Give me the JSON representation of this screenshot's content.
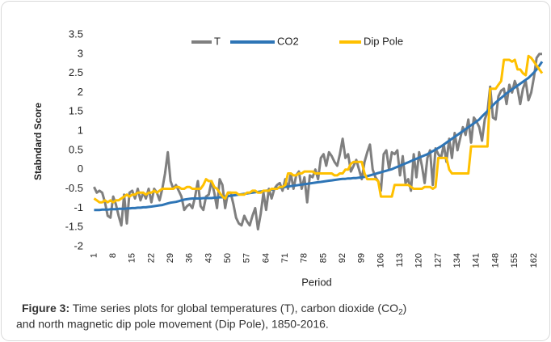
{
  "chart_data": {
    "type": "line",
    "y_label": "Stabndard Score",
    "x_label": "Period",
    "x": [
      1,
      2,
      3,
      4,
      5,
      6,
      7,
      8,
      9,
      10,
      11,
      12,
      13,
      14,
      15,
      16,
      17,
      18,
      19,
      20,
      21,
      22,
      23,
      24,
      25,
      26,
      27,
      28,
      29,
      30,
      31,
      32,
      33,
      34,
      35,
      36,
      37,
      38,
      39,
      40,
      41,
      42,
      43,
      44,
      45,
      46,
      47,
      48,
      49,
      50,
      51,
      52,
      53,
      54,
      55,
      56,
      57,
      58,
      59,
      60,
      61,
      62,
      63,
      64,
      65,
      66,
      67,
      68,
      69,
      70,
      71,
      72,
      73,
      74,
      75,
      76,
      77,
      78,
      79,
      80,
      81,
      82,
      83,
      84,
      85,
      86,
      87,
      88,
      89,
      90,
      91,
      92,
      93,
      94,
      95,
      96,
      97,
      98,
      99,
      100,
      101,
      102,
      103,
      104,
      105,
      106,
      107,
      108,
      109,
      110,
      111,
      112,
      113,
      114,
      115,
      116,
      117,
      118,
      119,
      120,
      121,
      122,
      123,
      124,
      125,
      126,
      127,
      128,
      129,
      130,
      131,
      132,
      133,
      134,
      135,
      136,
      137,
      138,
      139,
      140,
      141,
      142,
      143,
      144,
      145,
      146,
      147,
      148,
      149,
      150,
      151,
      152,
      153,
      154,
      155,
      156,
      157,
      158,
      159,
      160,
      161,
      162,
      163,
      164,
      165
    ],
    "xlim": [
      0,
      165
    ],
    "xticks": [
      1,
      8,
      15,
      22,
      29,
      36,
      43,
      50,
      57,
      64,
      71,
      78,
      85,
      92,
      99,
      106,
      113,
      120,
      127,
      134,
      141,
      148,
      155,
      162
    ],
    "ylim": [
      -2,
      3.5
    ],
    "yticks": [
      3.5,
      3,
      2.5,
      2,
      1.5,
      1,
      0.5,
      0,
      -0.5,
      -1,
      -1.5,
      -2
    ],
    "legend": "top",
    "series": [
      {
        "name": "T",
        "color": "#7f7f7f",
        "values": [
          -0.45,
          -0.6,
          -0.55,
          -0.6,
          -0.85,
          -1.2,
          -1.25,
          -0.7,
          -0.9,
          -1.2,
          -1.45,
          -0.65,
          -1.4,
          -0.6,
          -0.55,
          -0.75,
          -0.5,
          -0.8,
          -0.6,
          -0.75,
          -0.5,
          -0.85,
          -0.5,
          -0.6,
          -0.8,
          -0.5,
          -0.1,
          0.45,
          -0.3,
          -0.5,
          -0.4,
          -0.55,
          -0.7,
          -1.05,
          -0.95,
          -0.9,
          -1.0,
          -0.7,
          -0.3,
          -0.95,
          -1.05,
          -0.7,
          -0.65,
          -0.3,
          -0.6,
          -1.0,
          -0.25,
          -0.4,
          -1.0,
          -0.6,
          -0.6,
          -0.9,
          -1.25,
          -1.4,
          -1.45,
          -1.2,
          -1.35,
          -1.45,
          -1.2,
          -1.0,
          -1.55,
          -1.15,
          -0.6,
          -1.05,
          -0.5,
          -0.75,
          -0.5,
          -0.4,
          -0.35,
          -0.55,
          -0.25,
          -0.5,
          -0.1,
          -0.5,
          -0.15,
          -0.05,
          -0.5,
          -0.2,
          -0.85,
          -0.15,
          -0.2,
          0.0,
          -0.25,
          0.3,
          0.4,
          0.1,
          0.45,
          0.35,
          0.2,
          0.1,
          0.4,
          0.8,
          0.3,
          0.4,
          -0.05,
          0.1,
          0.25,
          0.0,
          -0.25,
          0.2,
          0.45,
          0.65,
          0.0,
          -0.2,
          -0.3,
          -0.55,
          0.4,
          0.5,
          0.0,
          0.45,
          0.4,
          0.5,
          -0.15,
          0.35,
          -0.35,
          -0.25,
          -0.55,
          0.4,
          -0.2,
          0.45,
          0.1,
          -0.35,
          0.3,
          0.5,
          -0.4,
          0.55,
          0.4,
          0.3,
          0.65,
          0.2,
          0.8,
          0.3,
          0.95,
          0.5,
          0.8,
          1.1,
          0.9,
          1.3,
          0.7,
          1.35,
          1.25,
          1.1,
          0.75,
          1.3,
          1.5,
          2.15,
          1.35,
          1.3,
          1.9,
          2.05,
          2.1,
          1.7,
          2.2,
          2.0,
          2.3,
          2.1,
          1.7,
          2.1,
          2.3,
          1.8,
          2.0,
          2.4,
          2.9,
          3.0,
          3.0
        ]
      },
      {
        "name": "CO2",
        "color": "#2e75b6",
        "values": [
          -1.05,
          -1.05,
          -1.05,
          -1.04,
          -1.04,
          -1.04,
          -1.03,
          -1.03,
          -1.03,
          -1.02,
          -1.02,
          -1.02,
          -1.01,
          -1.01,
          -1.0,
          -1.0,
          -0.99,
          -0.99,
          -0.98,
          -0.98,
          -0.97,
          -0.96,
          -0.95,
          -0.94,
          -0.93,
          -0.92,
          -0.9,
          -0.88,
          -0.86,
          -0.85,
          -0.84,
          -0.82,
          -0.8,
          -0.78,
          -0.77,
          -0.76,
          -0.75,
          -0.75,
          -0.75,
          -0.75,
          -0.74,
          -0.74,
          -0.74,
          -0.74,
          -0.73,
          -0.73,
          -0.72,
          -0.72,
          -0.7,
          -0.69,
          -0.68,
          -0.67,
          -0.66,
          -0.65,
          -0.64,
          -0.63,
          -0.62,
          -0.61,
          -0.6,
          -0.59,
          -0.58,
          -0.57,
          -0.56,
          -0.55,
          -0.54,
          -0.52,
          -0.5,
          -0.48,
          -0.47,
          -0.46,
          -0.45,
          -0.44,
          -0.43,
          -0.42,
          -0.41,
          -0.4,
          -0.39,
          -0.38,
          -0.37,
          -0.36,
          -0.35,
          -0.34,
          -0.33,
          -0.32,
          -0.31,
          -0.3,
          -0.29,
          -0.28,
          -0.27,
          -0.26,
          -0.25,
          -0.24,
          -0.24,
          -0.23,
          -0.23,
          -0.22,
          -0.22,
          -0.21,
          -0.2,
          -0.19,
          -0.17,
          -0.15,
          -0.13,
          -0.11,
          -0.09,
          -0.07,
          -0.05,
          -0.03,
          -0.01,
          0.01,
          0.04,
          0.07,
          0.1,
          0.13,
          0.16,
          0.19,
          0.22,
          0.25,
          0.28,
          0.31,
          0.34,
          0.37,
          0.4,
          0.44,
          0.48,
          0.52,
          0.56,
          0.6,
          0.65,
          0.7,
          0.75,
          0.8,
          0.85,
          0.9,
          0.95,
          1.0,
          1.05,
          1.1,
          1.15,
          1.2,
          1.25,
          1.3,
          1.38,
          1.45,
          1.52,
          1.6,
          1.67,
          1.74,
          1.8,
          1.86,
          1.92,
          1.98,
          2.03,
          2.08,
          2.13,
          2.18,
          2.23,
          2.28,
          2.33,
          2.38,
          2.45,
          2.52,
          2.6,
          2.7,
          2.8
        ]
      },
      {
        "name": "Dip Pole",
        "color": "#ffc000",
        "values": [
          -0.75,
          -0.8,
          -0.85,
          -0.85,
          -0.8,
          -0.85,
          -0.8,
          -0.85,
          -0.8,
          -0.8,
          -0.75,
          -0.7,
          -0.65,
          -0.7,
          -0.65,
          -0.65,
          -0.6,
          -0.6,
          -0.6,
          -0.65,
          -0.6,
          -0.6,
          -0.55,
          -0.6,
          -0.55,
          -0.5,
          -0.5,
          -0.5,
          -0.5,
          -0.5,
          -0.45,
          -0.45,
          -0.5,
          -0.5,
          -0.45,
          -0.45,
          -0.5,
          -0.5,
          -0.5,
          -0.5,
          -0.4,
          -0.25,
          -0.3,
          -0.3,
          -0.45,
          -0.5,
          -0.6,
          -0.7,
          -0.75,
          -0.6,
          -0.6,
          -0.6,
          -0.6,
          -0.65,
          -0.65,
          -0.65,
          -0.6,
          -0.6,
          -0.55,
          -0.55,
          -0.6,
          -0.6,
          -0.55,
          -0.55,
          -0.55,
          -0.5,
          -0.5,
          -0.5,
          -0.45,
          -0.45,
          -0.4,
          -0.1,
          -0.1,
          -0.15,
          -0.15,
          -0.1,
          -0.1,
          -0.05,
          -0.05,
          -0.05,
          -0.05,
          -0.1,
          -0.1,
          -0.1,
          -0.1,
          -0.1,
          -0.1,
          -0.1,
          -0.15,
          -0.15,
          -0.1,
          -0.1,
          0.0,
          0.0,
          0.15,
          0.2,
          0.2,
          0.2,
          0.2,
          -0.1,
          -0.25,
          -0.25,
          -0.25,
          -0.25,
          -0.3,
          -0.7,
          -0.7,
          -0.7,
          -0.7,
          -0.7,
          -0.4,
          -0.4,
          -0.4,
          -0.4,
          -0.4,
          -0.4,
          -0.45,
          -0.5,
          -0.5,
          -0.5,
          -0.5,
          -0.45,
          -0.45,
          -0.45,
          -0.5,
          -0.45,
          0.3,
          0.3,
          0.3,
          0.3,
          0.0,
          -0.1,
          -0.1,
          -0.1,
          -0.1,
          -0.1,
          -0.1,
          -0.1,
          0.6,
          0.6,
          0.6,
          0.6,
          0.6,
          0.6,
          0.6,
          2.1,
          2.1,
          2.1,
          2.2,
          2.3,
          2.85,
          2.85,
          2.85,
          2.8,
          2.85,
          2.6,
          2.6,
          2.5,
          2.45,
          2.95,
          2.9,
          2.8,
          2.7,
          2.6,
          2.5
        ]
      }
    ]
  },
  "caption": {
    "label": "Figure 3:",
    "text": [
      "Time series plots for global temperatures (T), carbon dioxide (CO",
      "2",
      ")",
      "and north magnetic dip pole movement (Dip Pole), 1850-2016."
    ]
  }
}
